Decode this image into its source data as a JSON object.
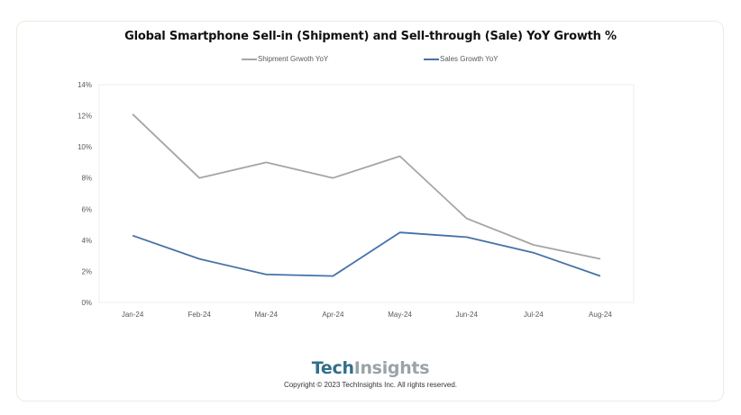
{
  "chart_data": {
    "type": "line",
    "title": "Global Smartphone Sell-in (Shipment) and Sell-through (Sale) YoY Growth %",
    "categories": [
      "Jan-24",
      "Feb-24",
      "Mar-24",
      "Apr-24",
      "May-24",
      "Jun-24",
      "Jul-24",
      "Aug-24"
    ],
    "series": [
      {
        "name": "Shipment Grwoth YoY",
        "color": "#a5a5a5",
        "values": [
          12.1,
          8.0,
          9.0,
          8.0,
          9.4,
          5.4,
          3.7,
          2.8
        ]
      },
      {
        "name": "Sales Growth YoY",
        "color": "#4472a8",
        "values": [
          4.3,
          2.8,
          1.8,
          1.7,
          4.5,
          4.2,
          3.2,
          1.7
        ]
      }
    ],
    "xlabel": "",
    "ylabel": "",
    "ylim": [
      0,
      14
    ],
    "yticks": [
      "0%",
      "2%",
      "4%",
      "6%",
      "8%",
      "10%",
      "12%",
      "14%"
    ],
    "ytick_values": [
      0,
      2,
      4,
      6,
      8,
      10,
      12,
      14
    ],
    "grid": false,
    "legend_position": "top"
  },
  "branding": {
    "logo_part1": "Tech",
    "logo_part2": "Insights",
    "copyright": "Copyright © 2023 TechInsights Inc.  All rights reserved."
  }
}
